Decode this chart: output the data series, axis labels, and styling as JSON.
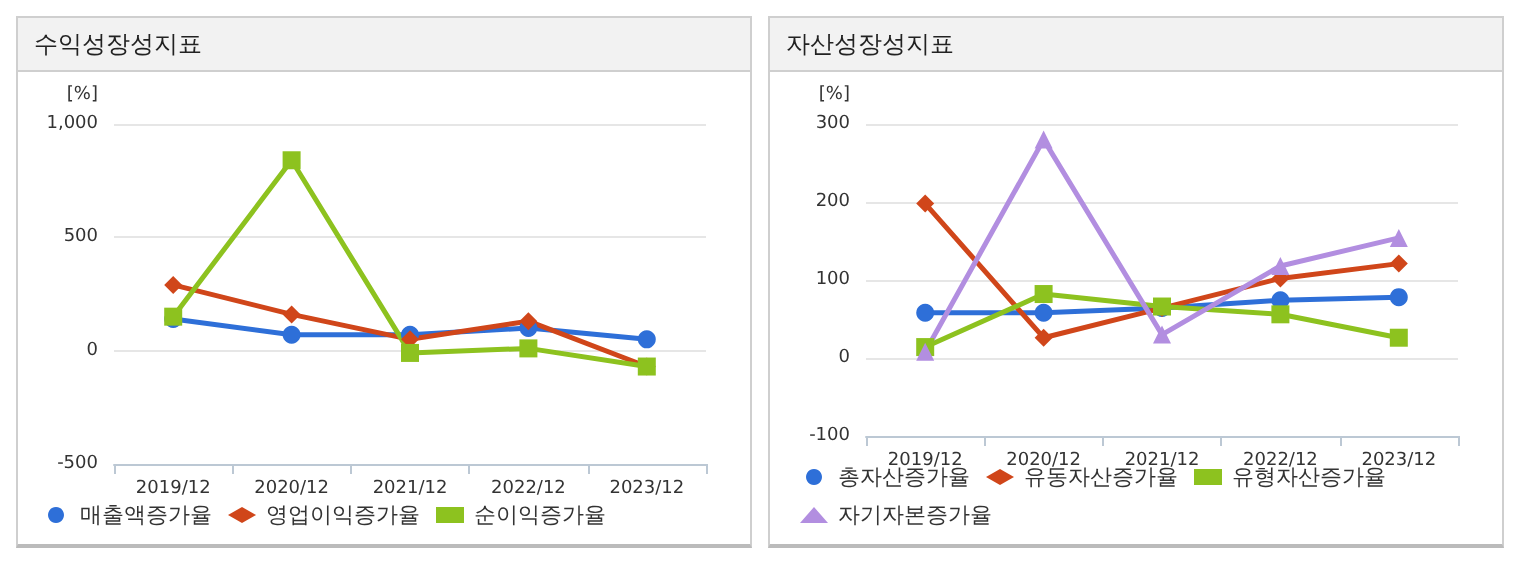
{
  "chart_data": [
    {
      "type": "line",
      "title": "수익성장성지표",
      "ylabel": "[%]",
      "categories": [
        "2019/12",
        "2020/12",
        "2021/12",
        "2022/12",
        "2023/12"
      ],
      "ylim": [
        -500,
        1000
      ],
      "yticks": [
        -500,
        0,
        500,
        {
          "value": 1000,
          "label": "1,000"
        }
      ],
      "grid": "y",
      "legend": "bottom",
      "series": [
        {
          "name": "매출액증가율",
          "color": "#2e6fd8",
          "marker": "circle",
          "values": [
            140,
            70,
            70,
            100,
            50
          ]
        },
        {
          "name": "영업이익증가율",
          "color": "#d0461a",
          "marker": "diamond",
          "values": [
            290,
            160,
            50,
            130,
            -70
          ]
        },
        {
          "name": "순이익증가율",
          "color": "#8dc21f",
          "marker": "square",
          "values": [
            150,
            840,
            -10,
            10,
            -70
          ]
        }
      ]
    },
    {
      "type": "line",
      "title": "자산성장성지표",
      "ylabel": "[%]",
      "categories": [
        "2019/12",
        "2020/12",
        "2021/12",
        "2022/12",
        "2023/12"
      ],
      "ylim": [
        -100,
        300
      ],
      "yticks": [
        -100,
        0,
        100,
        200,
        300
      ],
      "grid": "y",
      "legend": "bottom",
      "series": [
        {
          "name": "총자산증가율",
          "color": "#2e6fd8",
          "marker": "circle",
          "values": [
            58,
            58,
            64,
            74,
            78
          ]
        },
        {
          "name": "유동자산증가율",
          "color": "#d0461a",
          "marker": "diamond",
          "values": [
            198,
            26,
            64,
            102,
            121
          ]
        },
        {
          "name": "유형자산증가율",
          "color": "#8dc21f",
          "marker": "square",
          "values": [
            14,
            82,
            66,
            56,
            26
          ]
        },
        {
          "name": "자기자본증가율",
          "color": "#b28ee0",
          "marker": "triangle",
          "values": [
            8,
            280,
            30,
            118,
            154
          ]
        }
      ]
    }
  ]
}
